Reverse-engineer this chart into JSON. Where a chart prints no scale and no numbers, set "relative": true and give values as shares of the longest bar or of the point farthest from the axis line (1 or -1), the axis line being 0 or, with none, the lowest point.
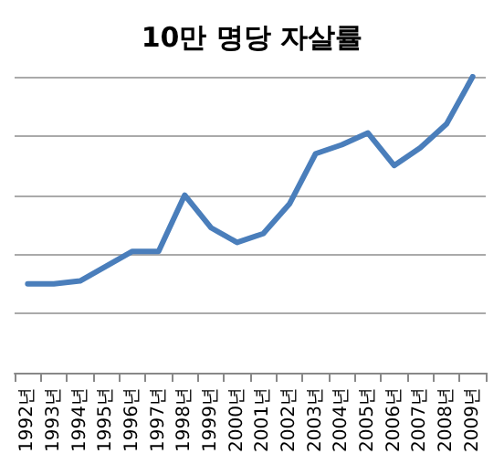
{
  "chart_data": {
    "type": "line",
    "title": "10만 명당 자살률",
    "relative": true,
    "categories": [
      "1992년",
      "1993년",
      "1994년",
      "1995년",
      "1996년",
      "1997년",
      "1998년",
      "1999년",
      "2000년",
      "2001년",
      "2002년",
      "2003년",
      "2004년",
      "2005년",
      "2006년",
      "2007년",
      "2008년",
      "2009년"
    ],
    "series": [
      {
        "color": "#4a7ebb",
        "values": [
          0.3,
          0.3,
          0.31,
          0.36,
          0.41,
          0.41,
          0.6,
          0.49,
          0.44,
          0.47,
          0.57,
          0.74,
          0.77,
          0.81,
          0.7,
          0.76,
          0.84,
          1
        ]
      }
    ],
    "grid": "y",
    "marker": "none",
    "line_style": "solid"
  }
}
